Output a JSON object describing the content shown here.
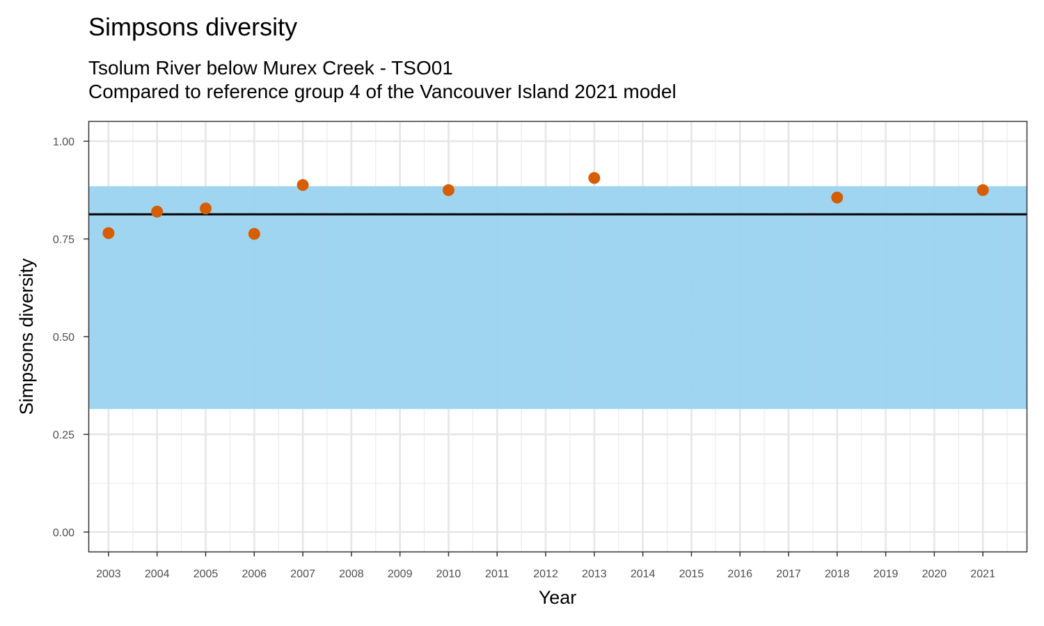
{
  "chart_data": {
    "type": "scatter",
    "title": "Simpsons diversity",
    "subtitle_lines": [
      "Tsolum River below Murex Creek - TSO01",
      "Compared to reference group 4 of the Vancouver Island 2021 model"
    ],
    "xlabel": "Year",
    "ylabel": "Simpsons diversity",
    "xlim": [
      2002.6,
      2021.9
    ],
    "ylim": [
      -0.05,
      1.05
    ],
    "x_ticks": [
      2003,
      2004,
      2005,
      2006,
      2007,
      2008,
      2009,
      2010,
      2011,
      2012,
      2013,
      2014,
      2015,
      2016,
      2017,
      2018,
      2019,
      2020,
      2021
    ],
    "y_ticks": [
      0.0,
      0.25,
      0.5,
      0.75,
      1.0
    ],
    "y_tick_labels": [
      "0.00",
      "0.25",
      "0.50",
      "0.75",
      "1.00"
    ],
    "reference_band": {
      "lower": 0.315,
      "upper": 0.885,
      "color": "#9bd3f0"
    },
    "reference_line": {
      "value": 0.813,
      "color": "#000000"
    },
    "points": [
      {
        "x": 2003,
        "y": 0.765
      },
      {
        "x": 2004,
        "y": 0.82
      },
      {
        "x": 2005,
        "y": 0.828
      },
      {
        "x": 2006,
        "y": 0.763
      },
      {
        "x": 2007,
        "y": 0.888
      },
      {
        "x": 2010,
        "y": 0.875
      },
      {
        "x": 2013,
        "y": 0.906
      },
      {
        "x": 2018,
        "y": 0.856
      },
      {
        "x": 2021,
        "y": 0.875
      }
    ],
    "point_color": "#d55e00",
    "grid": true
  }
}
